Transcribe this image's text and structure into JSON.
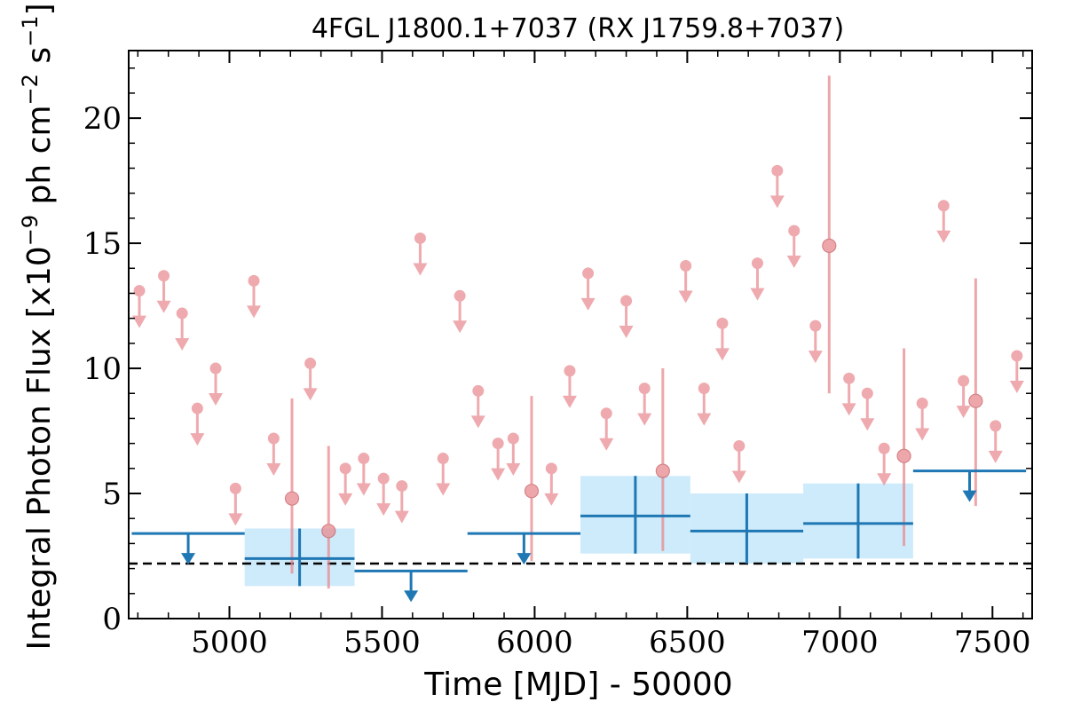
{
  "chart_data": {
    "type": "scatter",
    "title": "4FGL J1800.1+7037 (RX J1759.8+7037)",
    "xlabel": "Time [MJD] - 50000",
    "ylabel": "Integral Photon Flux [x10^-9 ph cm^-2 s^-1]",
    "ylabel_parts": {
      "a": "Integral Photon Flux [x10",
      "exp1": "−9",
      "b": " ph cm",
      "exp2": "−2",
      "c": " s",
      "exp3": "−1",
      "d": "]"
    },
    "xlim": [
      4670,
      7630
    ],
    "ylim": [
      0,
      22.7
    ],
    "x_ticks": [
      5000,
      5500,
      6000,
      6500,
      7000,
      7500
    ],
    "x_tick_labels": [
      "5000",
      "5500",
      "6000",
      "6500",
      "7000",
      "7500"
    ],
    "y_ticks": [
      0,
      5,
      10,
      15,
      20
    ],
    "y_tick_labels": [
      "0",
      "5",
      "10",
      "15",
      "20"
    ],
    "grid": false,
    "reference_line": {
      "y": 2.2,
      "style": "dashed",
      "color": "#000000"
    },
    "colors": {
      "short_bins": "#e88a8f",
      "long_bins": "#1f77b4",
      "long_bin_band": "#cdebfb"
    },
    "series": [
      {
        "kind": "short_upper_limits",
        "x": [
          4705,
          4785,
          4845,
          4895,
          4955,
          5020,
          5145,
          5080,
          5265,
          5380,
          5440,
          5505,
          5565,
          5625,
          5700,
          5755,
          5815,
          5880,
          5930,
          6055,
          6115,
          6175,
          6235,
          6300,
          6360,
          6495,
          6555,
          6615,
          6670,
          6730,
          6795,
          6850,
          6920,
          7030,
          7090,
          7145,
          7270,
          7340,
          7405,
          7510,
          7580
        ],
        "y": [
          13.1,
          13.7,
          12.2,
          8.4,
          10.0,
          5.2,
          7.2,
          13.5,
          10.2,
          6.0,
          6.4,
          5.6,
          5.3,
          15.2,
          6.4,
          12.9,
          9.1,
          7.0,
          7.2,
          6.0,
          9.9,
          13.8,
          8.2,
          12.7,
          9.2,
          14.1,
          9.2,
          11.8,
          6.9,
          14.2,
          17.9,
          15.5,
          11.7,
          9.6,
          9.0,
          6.8,
          8.6,
          16.5,
          9.5,
          7.7,
          10.5
        ]
      },
      {
        "kind": "short_detections",
        "x": [
          5205,
          5325,
          5990,
          6420,
          6965,
          7210,
          7445
        ],
        "y": [
          4.8,
          3.5,
          5.1,
          5.9,
          14.9,
          6.5,
          8.7
        ],
        "y_err_low": [
          1.8,
          1.2,
          2.3,
          2.7,
          9.0,
          2.9,
          4.5
        ],
        "y_err_high": [
          8.8,
          6.9,
          8.9,
          10.0,
          21.7,
          10.8,
          13.6
        ]
      },
      {
        "kind": "long_upper_limits",
        "x_start": [
          4680,
          5410,
          5780,
          7240
        ],
        "x_end": [
          5050,
          5780,
          6150,
          7610
        ],
        "x_center": [
          4865,
          5595,
          5965,
          7425
        ],
        "y": [
          3.4,
          1.9,
          3.4,
          5.9
        ]
      },
      {
        "kind": "long_detections",
        "x_start": [
          5050,
          6150,
          6510,
          6880
        ],
        "x_end": [
          5410,
          6510,
          6880,
          7240
        ],
        "x_center": [
          5230,
          6330,
          6695,
          7060
        ],
        "y": [
          2.4,
          4.1,
          3.5,
          3.8
        ],
        "y_err_low": [
          1.3,
          2.6,
          2.2,
          2.4
        ],
        "y_err_high": [
          3.6,
          5.7,
          5.0,
          5.4
        ]
      }
    ]
  }
}
